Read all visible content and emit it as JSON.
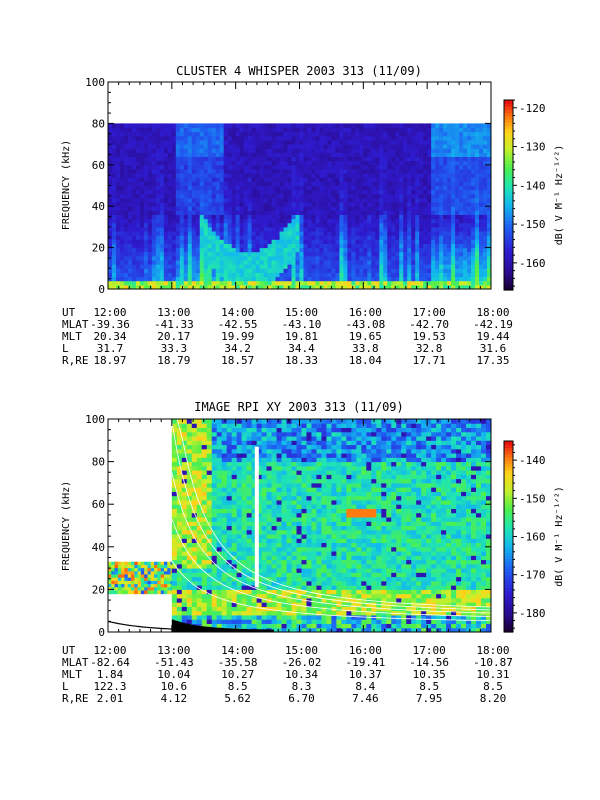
{
  "chart_data": [
    {
      "type": "heatmap",
      "title": "CLUSTER 4 WHISPER 2003 313 (11/09)",
      "ylabel": "FREQUENCY (kHz)",
      "ylim": [
        0,
        100
      ],
      "yticks": [
        "0",
        "20",
        "40",
        "60",
        "80",
        "100"
      ],
      "xlim": [
        "12:00",
        "18:00"
      ],
      "data_freq_max_khz": 80,
      "colorbar": {
        "label": "dB( V M⁻¹ Hz⁻¹ᐟ²)",
        "range": [
          -167,
          -118
        ],
        "ticks": [
          "-120",
          "-130",
          "-140",
          "-150",
          "-160"
        ]
      },
      "ephemeris": {
        "row_labels": [
          "UT",
          "MLAT",
          "MLT",
          "L",
          "R,RE"
        ],
        "rows": [
          [
            "12:00",
            "13:00",
            "14:00",
            "15:00",
            "16:00",
            "17:00",
            "18:00"
          ],
          [
            "-39.36",
            "-41.33",
            "-42.55",
            "-43.10",
            "-43.08",
            "-42.70",
            "-42.19"
          ],
          [
            "20.34",
            "20.17",
            "19.99",
            "19.81",
            "19.65",
            "19.53",
            "19.44"
          ],
          [
            "31.7",
            "33.3",
            "34.2",
            "34.4",
            "33.8",
            "32.8",
            "31.6"
          ],
          [
            "18.97",
            "18.79",
            "18.57",
            "18.33",
            "18.04",
            "17.71",
            "17.35"
          ]
        ]
      }
    },
    {
      "type": "heatmap",
      "title": "IMAGE RPI XY 2003 313 (11/09)",
      "ylabel": "FREQUENCY (kHz)",
      "ylim": [
        0,
        100
      ],
      "yticks": [
        "0",
        "20",
        "40",
        "60",
        "80",
        "100"
      ],
      "xlim": [
        "12:00",
        "18:00"
      ],
      "colorbar": {
        "label": "dB( V M⁻¹ Hz⁻¹ᐟ²)",
        "range": [
          -185,
          -135
        ],
        "ticks": [
          "-140",
          "-150",
          "-160",
          "-170",
          "-180"
        ]
      },
      "ephemeris": {
        "row_labels": [
          "UT",
          "MLAT",
          "MLT",
          "L",
          "R,RE"
        ],
        "rows": [
          [
            "12:00",
            "13:00",
            "14:00",
            "15:00",
            "16:00",
            "17:00",
            "18:00"
          ],
          [
            "-82.64",
            "-51.43",
            "-35.58",
            "-26.02",
            "-19.41",
            "-14.56",
            "-10.87"
          ],
          [
            "1.84",
            "10.04",
            "10.27",
            "10.34",
            "10.37",
            "10.35",
            "10.31"
          ],
          [
            "122.3",
            "10.6",
            "8.5",
            "8.3",
            "8.4",
            "8.5",
            "8.5"
          ],
          [
            "2.01",
            "4.12",
            "5.62",
            "6.70",
            "7.46",
            "7.95",
            "8.20"
          ]
        ]
      }
    }
  ]
}
